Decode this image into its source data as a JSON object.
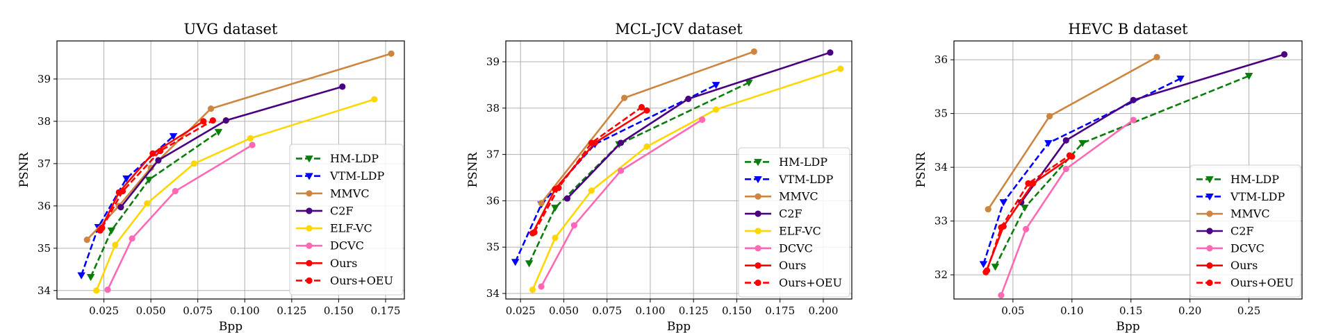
{
  "chart_data": [
    {
      "type": "line",
      "title": "UVG dataset",
      "xlabel": "Bpp",
      "ylabel": "PSNR",
      "xlim": [
        0.0,
        0.185
      ],
      "ylim": [
        33.8,
        39.9
      ],
      "xticks": [
        "0.025",
        "0.050",
        "0.075",
        "0.100",
        "0.125",
        "0.150",
        "0.175"
      ],
      "yticks": [
        "34",
        "35",
        "36",
        "37",
        "38",
        "39"
      ],
      "xtick_values": [
        0.025,
        0.05,
        0.075,
        0.1,
        0.125,
        0.15,
        0.175
      ],
      "ytick_values": [
        34,
        35,
        36,
        37,
        38,
        39
      ],
      "grid": true,
      "legend_position": "lower-right",
      "series": [
        {
          "name": "HM-LDP",
          "x": [
            0.018,
            0.029,
            0.049,
            0.086
          ],
          "y": [
            34.32,
            35.42,
            36.62,
            37.75
          ]
        },
        {
          "name": "VTM-LDP",
          "x": [
            0.013,
            0.022,
            0.037,
            0.062
          ],
          "y": [
            34.36,
            35.5,
            36.65,
            37.65
          ]
        },
        {
          "name": "MMVC",
          "x": [
            0.016,
            0.033,
            0.05,
            0.082,
            0.178
          ],
          "y": [
            35.2,
            36.0,
            36.9,
            38.3,
            39.6
          ]
        },
        {
          "name": "C2F",
          "x": [
            0.034,
            0.054,
            0.09,
            0.152
          ],
          "y": [
            35.97,
            37.08,
            38.02,
            38.82
          ]
        },
        {
          "name": "ELF-VC",
          "x": [
            0.021,
            0.031,
            0.048,
            0.073,
            0.103,
            0.169
          ],
          "y": [
            34.0,
            35.08,
            36.06,
            37.0,
            37.6,
            38.52
          ]
        },
        {
          "name": "DCVC",
          "x": [
            0.027,
            0.04,
            0.063,
            0.104
          ],
          "y": [
            34.02,
            35.23,
            36.35,
            37.44
          ]
        },
        {
          "name": "Ours",
          "x": [
            0.023,
            0.033,
            0.051,
            0.078
          ],
          "y": [
            35.42,
            36.32,
            37.24,
            38.0
          ]
        },
        {
          "name": "Ours+OEU",
          "x": [
            0.024,
            0.035,
            0.055,
            0.083
          ],
          "y": [
            35.48,
            36.35,
            37.3,
            38.02
          ]
        }
      ]
    },
    {
      "type": "line",
      "title": "MCL-JCV dataset",
      "xlabel": "Bpp",
      "ylabel": "PSNR",
      "xlim": [
        0.0165,
        0.2165
      ],
      "ylim": [
        33.88,
        39.45
      ],
      "xticks": [
        "0.025",
        "0.050",
        "0.075",
        "0.100",
        "0.125",
        "0.150",
        "0.175",
        "0.200"
      ],
      "yticks": [
        "34",
        "35",
        "36",
        "37",
        "38",
        "39"
      ],
      "xtick_values": [
        0.025,
        0.05,
        0.075,
        0.1,
        0.125,
        0.15,
        0.175,
        0.2
      ],
      "ytick_values": [
        34,
        35,
        36,
        37,
        38,
        39
      ],
      "grid": true,
      "legend_position": "lower-right",
      "series": [
        {
          "name": "HM-LDP",
          "x": [
            0.03,
            0.045,
            0.082,
            0.157
          ],
          "y": [
            34.65,
            35.85,
            37.22,
            38.55
          ]
        },
        {
          "name": "VTM-LDP",
          "x": [
            0.022,
            0.037,
            0.068,
            0.138
          ],
          "y": [
            34.68,
            35.92,
            37.22,
            38.5
          ]
        },
        {
          "name": "MMVC",
          "x": [
            0.037,
            0.085,
            0.16
          ],
          "y": [
            35.95,
            38.22,
            39.22
          ]
        },
        {
          "name": "C2F",
          "x": [
            0.052,
            0.083,
            0.122,
            0.204
          ],
          "y": [
            36.05,
            37.25,
            38.2,
            39.2
          ]
        },
        {
          "name": "ELF-VC",
          "x": [
            0.032,
            0.045,
            0.066,
            0.098,
            0.138,
            0.21
          ],
          "y": [
            34.08,
            35.2,
            36.22,
            37.17,
            37.97,
            38.85
          ]
        },
        {
          "name": "DCVC",
          "x": [
            0.037,
            0.056,
            0.083,
            0.13
          ],
          "y": [
            34.15,
            35.47,
            36.65,
            37.75
          ]
        },
        {
          "name": "Ours",
          "x": [
            0.032,
            0.045,
            0.068,
            0.098
          ],
          "y": [
            35.3,
            36.25,
            37.25,
            37.95
          ]
        },
        {
          "name": "Ours+OEU",
          "x": [
            0.033,
            0.047,
            0.066,
            0.095
          ],
          "y": [
            35.32,
            36.28,
            37.25,
            38.02
          ]
        }
      ]
    },
    {
      "type": "line",
      "title": "HEVC B dataset",
      "xlabel": "Bpp",
      "ylabel": "PSNR",
      "xlim": [
        0.0,
        0.295
      ],
      "ylim": [
        31.55,
        36.35
      ],
      "xticks": [
        "0.05",
        "0.10",
        "0.15",
        "0.20",
        "0.25"
      ],
      "yticks": [
        "32",
        "33",
        "34",
        "35",
        "36"
      ],
      "xtick_values": [
        0.05,
        0.1,
        0.15,
        0.2,
        0.25
      ],
      "ytick_values": [
        32,
        33,
        34,
        35,
        36
      ],
      "grid": true,
      "legend_position": "lower-right",
      "series": [
        {
          "name": "HM-LDP",
          "x": [
            0.035,
            0.06,
            0.109,
            0.25
          ],
          "y": [
            32.15,
            33.25,
            34.45,
            35.7
          ]
        },
        {
          "name": "VTM-LDP",
          "x": [
            0.025,
            0.042,
            0.08,
            0.192
          ],
          "y": [
            32.2,
            33.35,
            34.45,
            35.65
          ]
        },
        {
          "name": "MMVC",
          "x": [
            0.029,
            0.081,
            0.172
          ],
          "y": [
            33.22,
            34.95,
            36.05
          ]
        },
        {
          "name": "C2F",
          "x": [
            0.057,
            0.095,
            0.152,
            0.28
          ],
          "y": [
            33.35,
            34.5,
            35.25,
            36.1
          ]
        },
        {
          "name": "DCVC",
          "x": [
            0.04,
            0.061,
            0.095,
            0.152
          ],
          "y": [
            31.62,
            32.85,
            33.97,
            34.88
          ]
        },
        {
          "name": "Ours",
          "x": [
            0.027,
            0.042,
            0.067,
            0.1
          ],
          "y": [
            32.05,
            32.9,
            33.7,
            34.2
          ]
        },
        {
          "name": "Ours+OEU",
          "x": [
            0.028,
            0.04,
            0.063,
            0.098
          ],
          "y": [
            32.08,
            32.88,
            33.7,
            34.22
          ]
        }
      ]
    }
  ],
  "legend": {
    "entries": [
      {
        "name": "HM-LDP",
        "color": "#0a7d0a",
        "dash": "dashed",
        "marker": "triangle-down"
      },
      {
        "name": "VTM-LDP",
        "color": "#0000ff",
        "dash": "dashed",
        "marker": "triangle-down"
      },
      {
        "name": "MMVC",
        "color": "#cd853f",
        "dash": "solid",
        "marker": "circle"
      },
      {
        "name": "C2F",
        "color": "#4b0082",
        "dash": "solid",
        "marker": "circle"
      },
      {
        "name": "ELF-VC",
        "color": "#ffd700",
        "dash": "solid",
        "marker": "circle"
      },
      {
        "name": "DCVC",
        "color": "#ff69b4",
        "dash": "solid",
        "marker": "circle"
      },
      {
        "name": "Ours",
        "color": "#ff0000",
        "dash": "solid",
        "marker": "circle"
      },
      {
        "name": "Ours+OEU",
        "color": "#ff0000",
        "dash": "dashed",
        "marker": "circle"
      }
    ]
  }
}
